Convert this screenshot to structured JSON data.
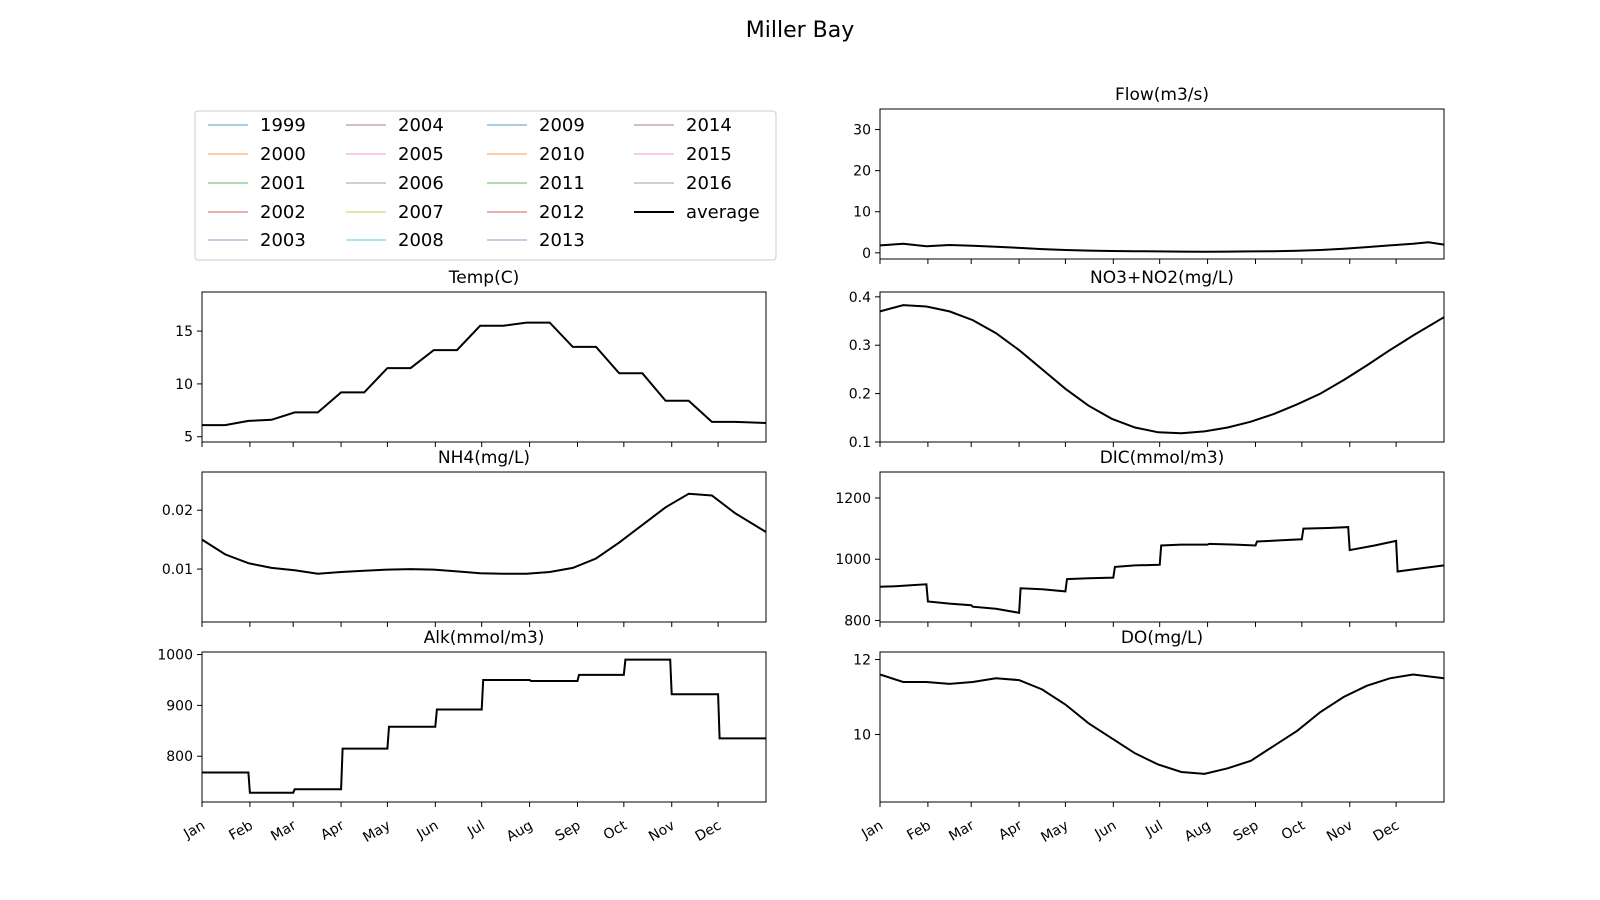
{
  "figure": {
    "title": "Miller Bay"
  },
  "legend": {
    "entries": [
      {
        "label": "1999",
        "color": "#1f77b4"
      },
      {
        "label": "2000",
        "color": "#ff7f0e"
      },
      {
        "label": "2001",
        "color": "#2ca02c"
      },
      {
        "label": "2002",
        "color": "#d62728"
      },
      {
        "label": "2003",
        "color": "#9467bd"
      },
      {
        "label": "2004",
        "color": "#8c564b"
      },
      {
        "label": "2005",
        "color": "#e377c2"
      },
      {
        "label": "2006",
        "color": "#7f7f7f"
      },
      {
        "label": "2007",
        "color": "#bcbd22"
      },
      {
        "label": "2008",
        "color": "#17becf"
      },
      {
        "label": "2009",
        "color": "#1f77b4"
      },
      {
        "label": "2010",
        "color": "#ff7f0e"
      },
      {
        "label": "2011",
        "color": "#2ca02c"
      },
      {
        "label": "2012",
        "color": "#d62728"
      },
      {
        "label": "2013",
        "color": "#9467bd"
      },
      {
        "label": "2014",
        "color": "#8c564b"
      },
      {
        "label": "2015",
        "color": "#e377c2"
      },
      {
        "label": "2016",
        "color": "#7f7f7f"
      },
      {
        "label": "average",
        "color": "#000000"
      }
    ]
  },
  "months": [
    "Jan",
    "Feb",
    "Mar",
    "Apr",
    "May",
    "Jun",
    "Jul",
    "Aug",
    "Sep",
    "Oct",
    "Nov",
    "Dec"
  ],
  "chart_data": [
    {
      "type": "line",
      "title": "Flow(m3/s)",
      "xlim": [
        0,
        365
      ],
      "ylim": [
        -1.5,
        35
      ],
      "yticks": [
        0,
        10,
        20,
        30
      ],
      "series": [
        {
          "name": "average",
          "x": [
            0,
            15,
            30,
            45,
            60,
            75,
            90,
            105,
            120,
            135,
            150,
            165,
            180,
            195,
            210,
            225,
            240,
            255,
            270,
            285,
            300,
            315,
            330,
            345,
            355,
            365
          ],
          "values": [
            1.8,
            2.2,
            1.6,
            1.9,
            1.7,
            1.5,
            1.2,
            0.9,
            0.7,
            0.55,
            0.45,
            0.4,
            0.35,
            0.3,
            0.28,
            0.3,
            0.35,
            0.4,
            0.5,
            0.7,
            1.0,
            1.4,
            1.8,
            2.2,
            2.6,
            2.0
          ]
        }
      ]
    },
    {
      "type": "line",
      "title": "Temp(C)",
      "xlim": [
        0,
        365
      ],
      "ylim": [
        4.5,
        18.7
      ],
      "yticks": [
        5,
        10,
        15
      ],
      "series": [
        {
          "name": "average",
          "x": [
            0,
            15,
            30,
            45,
            60,
            75,
            90,
            105,
            120,
            135,
            150,
            165,
            180,
            195,
            210,
            225,
            240,
            255,
            270,
            285,
            300,
            315,
            330,
            345,
            365
          ],
          "values": [
            6.1,
            6.1,
            6.5,
            6.6,
            7.3,
            7.3,
            9.2,
            9.2,
            11.5,
            11.5,
            13.2,
            13.2,
            15.5,
            15.5,
            15.8,
            15.8,
            13.5,
            13.5,
            11.0,
            11.0,
            8.4,
            8.4,
            6.4,
            6.4,
            6.3
          ]
        }
      ]
    },
    {
      "type": "line",
      "title": "NO3+NO2(mg/L)",
      "xlim": [
        0,
        365
      ],
      "ylim": [
        0.1,
        0.41
      ],
      "yticks": [
        0.1,
        0.2,
        0.3,
        0.4
      ],
      "series": [
        {
          "name": "average",
          "x": [
            0,
            15,
            30,
            45,
            60,
            75,
            90,
            105,
            120,
            135,
            150,
            165,
            180,
            195,
            210,
            225,
            240,
            255,
            270,
            285,
            300,
            315,
            330,
            345,
            365
          ],
          "values": [
            0.37,
            0.383,
            0.38,
            0.37,
            0.352,
            0.325,
            0.29,
            0.25,
            0.21,
            0.175,
            0.148,
            0.13,
            0.12,
            0.118,
            0.122,
            0.13,
            0.142,
            0.158,
            0.178,
            0.2,
            0.228,
            0.258,
            0.29,
            0.32,
            0.358
          ]
        }
      ]
    },
    {
      "type": "line",
      "title": "NH4(mg/L)",
      "xlim": [
        0,
        365
      ],
      "ylim": [
        0.001,
        0.0265
      ],
      "yticks": [
        0.01,
        0.02
      ],
      "series": [
        {
          "name": "average",
          "x": [
            0,
            15,
            30,
            45,
            60,
            75,
            90,
            105,
            120,
            135,
            150,
            165,
            180,
            195,
            210,
            225,
            240,
            255,
            270,
            285,
            300,
            315,
            330,
            345,
            365
          ],
          "values": [
            0.015,
            0.0125,
            0.011,
            0.0102,
            0.0098,
            0.0092,
            0.0095,
            0.0097,
            0.0099,
            0.01,
            0.0099,
            0.0096,
            0.0093,
            0.0092,
            0.0092,
            0.0095,
            0.0102,
            0.0118,
            0.0145,
            0.0175,
            0.0205,
            0.0228,
            0.0225,
            0.0195,
            0.0163
          ]
        }
      ]
    },
    {
      "type": "line",
      "title": "DIC(mmol/m3)",
      "xlim": [
        0,
        365
      ],
      "ylim": [
        795,
        1285
      ],
      "yticks": [
        800,
        1000,
        1200
      ],
      "series": [
        {
          "name": "average",
          "x": [
            0,
            10,
            20,
            30,
            31,
            45,
            59,
            60,
            75,
            90,
            91,
            105,
            120,
            121,
            135,
            151,
            152,
            165,
            181,
            182,
            195,
            212,
            213,
            230,
            243,
            244,
            260,
            273,
            274,
            290,
            303,
            304,
            320,
            334,
            335,
            350,
            365
          ],
          "values": [
            910,
            912,
            915,
            918,
            862,
            855,
            850,
            845,
            838,
            825,
            905,
            902,
            895,
            935,
            938,
            940,
            975,
            980,
            982,
            1045,
            1048,
            1048,
            1050,
            1048,
            1045,
            1058,
            1062,
            1065,
            1100,
            1102,
            1105,
            1030,
            1045,
            1060,
            960,
            970,
            980
          ]
        }
      ]
    },
    {
      "type": "line",
      "title": "Alk(mmol/m3)",
      "xlim": [
        0,
        365
      ],
      "ylim": [
        710,
        1005
      ],
      "yticks": [
        800,
        900,
        1000
      ],
      "series": [
        {
          "name": "average",
          "x": [
            0,
            30,
            31,
            59,
            60,
            90,
            91,
            120,
            121,
            151,
            152,
            181,
            182,
            212,
            213,
            243,
            244,
            273,
            274,
            303,
            304,
            334,
            335,
            365
          ],
          "values": [
            768,
            768,
            728,
            728,
            735,
            735,
            815,
            815,
            858,
            858,
            892,
            892,
            950,
            950,
            948,
            948,
            960,
            960,
            990,
            990,
            922,
            922,
            835,
            835
          ]
        }
      ]
    },
    {
      "type": "line",
      "title": "DO(mg/L)",
      "xlim": [
        0,
        365
      ],
      "ylim": [
        8.2,
        12.2
      ],
      "yticks": [
        10,
        12
      ],
      "series": [
        {
          "name": "average",
          "x": [
            0,
            15,
            30,
            45,
            60,
            75,
            90,
            105,
            120,
            135,
            150,
            165,
            180,
            195,
            210,
            225,
            240,
            255,
            270,
            285,
            300,
            315,
            330,
            345,
            365
          ],
          "values": [
            11.6,
            11.4,
            11.4,
            11.35,
            11.4,
            11.5,
            11.45,
            11.2,
            10.8,
            10.3,
            9.9,
            9.5,
            9.2,
            9.0,
            8.95,
            9.1,
            9.3,
            9.7,
            10.1,
            10.6,
            11.0,
            11.3,
            11.5,
            11.6,
            11.5
          ]
        }
      ]
    }
  ]
}
